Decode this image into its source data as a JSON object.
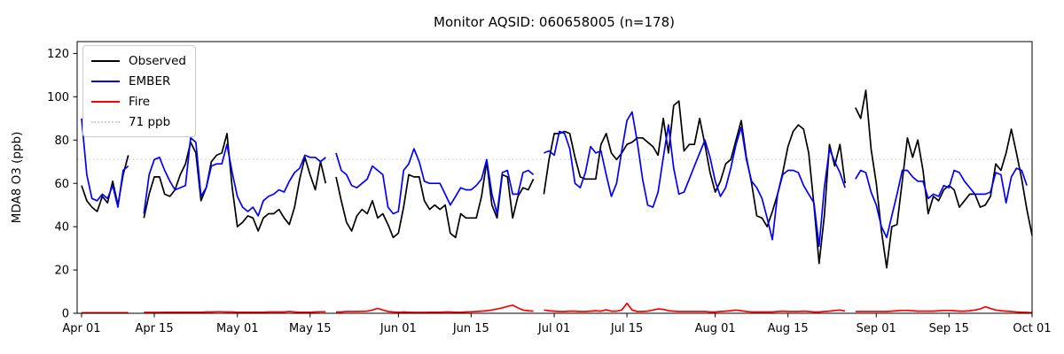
{
  "chart_data": {
    "type": "line",
    "title": "Monitor AQSID: 060658005 (n=178)",
    "xlabel": "",
    "ylabel": "MDA8 O3 (ppb)",
    "ylim": [
      0,
      125.5
    ],
    "y_ticks": [
      0,
      20,
      40,
      60,
      80,
      100,
      120
    ],
    "x_ticks": [
      {
        "label": "Apr 01",
        "day": 0
      },
      {
        "label": "Apr 15",
        "day": 14
      },
      {
        "label": "May 01",
        "day": 30
      },
      {
        "label": "May 15",
        "day": 44
      },
      {
        "label": "Jun 01",
        "day": 61
      },
      {
        "label": "Jun 15",
        "day": 75
      },
      {
        "label": "Jul 01",
        "day": 91
      },
      {
        "label": "Jul 15",
        "day": 105
      },
      {
        "label": "Aug 01",
        "day": 122
      },
      {
        "label": "Aug 15",
        "day": 136
      },
      {
        "label": "Sep 01",
        "day": 153
      },
      {
        "label": "Sep 15",
        "day": 167
      },
      {
        "label": "Oct 01",
        "day": 183
      }
    ],
    "x_unit": "days since Apr 01",
    "grid": false,
    "legend_position": "upper-left",
    "threshold": {
      "label": "71 ppb",
      "value": 71,
      "color": "#d3d3d3",
      "style": "dotted"
    },
    "series": [
      {
        "name": "Observed",
        "color": "#000000",
        "values": [
          59,
          52,
          49,
          47,
          54,
          51,
          61,
          50,
          64,
          73,
          null,
          null,
          44,
          55,
          63,
          63,
          55,
          54,
          57,
          64,
          69,
          79,
          74,
          52,
          58,
          70,
          73,
          74,
          83,
          58,
          40,
          42,
          45,
          44,
          38,
          44,
          46,
          46,
          48,
          44,
          41,
          49,
          62,
          72,
          64,
          57,
          70,
          60,
          null,
          63,
          52,
          42,
          38,
          45,
          48,
          46,
          52,
          44,
          46,
          41,
          35,
          37,
          49,
          64,
          63,
          63,
          52,
          48,
          50,
          48,
          50,
          37,
          35,
          46,
          44,
          44,
          44,
          54,
          70,
          50,
          44,
          64,
          63,
          44,
          54,
          58,
          57,
          62,
          null,
          55,
          71,
          83,
          83,
          84,
          83,
          72,
          63,
          62,
          62,
          62,
          78,
          83,
          74,
          71,
          74,
          78,
          79,
          81,
          81,
          79,
          77,
          73,
          90,
          74,
          96,
          98,
          75,
          78,
          78,
          90,
          78,
          65,
          56,
          61,
          69,
          71,
          80,
          89,
          72,
          60,
          45,
          44,
          40,
          47,
          55,
          65,
          77,
          84,
          87,
          85,
          74,
          50,
          23,
          45,
          78,
          68,
          78,
          60,
          null,
          95,
          90,
          103,
          76,
          60,
          38,
          21,
          40,
          41,
          61,
          81,
          72,
          80,
          66,
          46,
          54,
          52,
          57,
          59,
          57,
          49,
          52,
          55,
          55,
          49,
          50,
          54,
          69,
          66,
          74,
          85,
          74,
          62,
          48,
          36
        ]
      },
      {
        "name": "EMBER",
        "color": "#0000ff",
        "values": [
          90,
          64,
          53,
          52,
          55,
          53,
          59,
          49,
          66,
          68,
          null,
          null,
          46,
          64,
          71,
          72,
          66,
          61,
          57,
          58,
          59,
          81,
          79,
          54,
          58,
          68,
          69,
          69,
          78,
          65,
          54,
          49,
          47,
          49,
          45,
          52,
          54,
          55,
          57,
          56,
          61,
          65,
          67,
          73,
          72,
          72,
          70,
          72,
          null,
          74,
          66,
          64,
          59,
          58,
          60,
          62,
          68,
          66,
          64,
          49,
          46,
          47,
          66,
          69,
          76,
          70,
          61,
          60,
          60,
          60,
          55,
          50,
          54,
          58,
          57,
          57,
          59,
          62,
          71,
          55,
          46,
          65,
          66,
          55,
          55,
          65,
          66,
          64,
          null,
          74,
          75,
          73,
          84,
          83,
          76,
          60,
          58,
          65,
          77,
          74,
          75,
          64,
          54,
          60,
          75,
          89,
          93,
          79,
          62,
          50,
          49,
          56,
          72,
          87,
          67,
          55,
          56,
          62,
          68,
          74,
          80,
          72,
          61,
          54,
          58,
          67,
          78,
          86,
          71,
          61,
          58,
          53,
          44,
          34,
          55,
          64,
          66,
          66,
          65,
          59,
          55,
          51,
          31,
          58,
          76,
          70,
          65,
          58,
          null,
          62,
          66,
          65,
          56,
          50,
          40,
          35,
          45,
          55,
          66,
          66,
          63,
          61,
          61,
          53,
          55,
          54,
          59,
          58,
          66,
          65,
          61,
          58,
          55,
          55,
          55,
          56,
          65,
          64,
          51,
          63,
          67,
          66,
          59,
          null
        ]
      },
      {
        "name": "Fire",
        "color": "#ff0000",
        "values": [
          0.3,
          0.3,
          0.3,
          0.3,
          0.3,
          0.3,
          0.3,
          0.3,
          0.3,
          0.3,
          null,
          null,
          0.4,
          0.4,
          0.4,
          0.4,
          0.5,
          0.5,
          0.5,
          0.5,
          0.5,
          0.5,
          0.5,
          0.5,
          0.6,
          0.6,
          0.7,
          0.7,
          0.6,
          0.6,
          0.5,
          0.5,
          0.5,
          0.5,
          0.5,
          0.5,
          0.6,
          0.6,
          0.6,
          0.6,
          0.8,
          0.6,
          0.5,
          0.5,
          0.5,
          0.6,
          0.7,
          0.7,
          null,
          0.6,
          0.6,
          0.8,
          0.8,
          0.8,
          0.9,
          1.0,
          1.5,
          2.3,
          1.5,
          0.8,
          0.6,
          0.5,
          0.6,
          0.5,
          0.4,
          0.4,
          0.4,
          0.5,
          0.5,
          0.5,
          0.6,
          0.6,
          0.5,
          0.5,
          0.6,
          0.7,
          0.8,
          1.0,
          1.2,
          1.5,
          2.0,
          2.5,
          3.2,
          3.7,
          2.5,
          1.5,
          1.2,
          1.0,
          null,
          1.5,
          1.2,
          1.0,
          0.8,
          0.8,
          1.0,
          1.0,
          0.8,
          0.8,
          1.0,
          1.2,
          1.0,
          1.6,
          1.0,
          1.0,
          1.5,
          4.6,
          1.5,
          0.8,
          0.8,
          1.0,
          1.5,
          2.0,
          1.8,
          1.2,
          1.0,
          0.8,
          0.8,
          0.8,
          0.8,
          0.8,
          0.8,
          0.6,
          0.6,
          0.8,
          1.0,
          1.2,
          1.5,
          1.2,
          0.8,
          0.6,
          0.6,
          0.6,
          0.6,
          0.6,
          0.8,
          1.0,
          0.8,
          0.8,
          0.8,
          1.0,
          0.8,
          0.6,
          0.6,
          0.8,
          1.0,
          1.3,
          1.5,
          1.0,
          null,
          0.8,
          0.8,
          0.8,
          0.8,
          0.8,
          0.8,
          0.8,
          1.0,
          1.2,
          1.3,
          1.3,
          1.2,
          1.0,
          1.0,
          1.0,
          1.0,
          1.2,
          1.3,
          1.3,
          1.2,
          1.0,
          1.0,
          1.2,
          1.5,
          2.0,
          3.0,
          2.2,
          1.5,
          1.2,
          1.0,
          0.8,
          0.6,
          0.5,
          0.4,
          0.3
        ]
      }
    ]
  },
  "legend": {
    "observed_label": "Observed",
    "ember_label": "EMBER",
    "fire_label": "Fire",
    "threshold_label": "71 ppb"
  }
}
